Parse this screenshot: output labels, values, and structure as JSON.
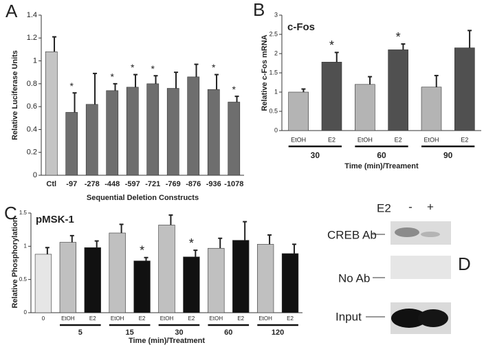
{
  "panel_labels": [
    "A",
    "B",
    "C",
    "D"
  ],
  "chart_data": [
    {
      "type": "bar",
      "ylabel": "Relative Luciferase Units",
      "xlabel": "Sequential Deletion Constructs",
      "categories": [
        "Ctl",
        "-97",
        "-278",
        "-448",
        "-597",
        "-721",
        "-769",
        "-876",
        "-936",
        "-1078"
      ],
      "values": [
        1.08,
        0.55,
        0.62,
        0.74,
        0.77,
        0.8,
        0.76,
        0.86,
        0.75,
        0.64
      ],
      "errors": [
        0.13,
        0.17,
        0.27,
        0.06,
        0.11,
        0.07,
        0.14,
        0.11,
        0.13,
        0.05
      ],
      "markers": [
        null,
        "*",
        null,
        "*",
        "*",
        "*",
        null,
        null,
        "*",
        "*"
      ],
      "colors": [
        "#c4c4c4",
        "#6e6e6e",
        "#6e6e6e",
        "#6e6e6e",
        "#6e6e6e",
        "#6e6e6e",
        "#6e6e6e",
        "#6e6e6e",
        "#6e6e6e",
        "#6e6e6e"
      ],
      "ylim": [
        0,
        1.4
      ],
      "yticks": [
        0,
        0.2,
        0.4,
        0.6,
        0.8,
        1,
        1.2,
        1.4
      ]
    },
    {
      "type": "bar",
      "title": "c-Fos",
      "ylabel": "Relative c-Fos mRNA",
      "xlabel": "Time (min)/Treament",
      "categories": [
        "EtOH",
        "E2",
        "EtOH",
        "E2",
        "EtOH",
        "E2"
      ],
      "group_labels": [
        "30",
        null,
        "60",
        null,
        "90",
        null
      ],
      "values": [
        1.0,
        1.78,
        1.2,
        2.1,
        1.13,
        2.15
      ],
      "errors": [
        0.08,
        0.25,
        0.2,
        0.15,
        0.3,
        0.45
      ],
      "markers": [
        null,
        "*",
        null,
        "*",
        null,
        null
      ],
      "colors": [
        "#b4b4b4",
        "#505050",
        "#b4b4b4",
        "#505050",
        "#b4b4b4",
        "#505050"
      ],
      "ylim": [
        0,
        3
      ],
      "yticks": [
        0,
        0.5,
        1,
        1.5,
        2,
        2.5,
        3
      ]
    },
    {
      "type": "bar",
      "title": "pMSK-1",
      "ylabel": "Relative Phosphorylation",
      "xlabel": "Time (min)/Treatment",
      "categories": [
        "0",
        "EtOH",
        "E2",
        "EtOH",
        "E2",
        "EtOH",
        "E2",
        "EtOH",
        "E2",
        "EtOH",
        "E2"
      ],
      "group_labels": [
        null,
        "5",
        null,
        "15",
        null,
        "30",
        null,
        "60",
        null,
        "120",
        null
      ],
      "values": [
        0.88,
        1.06,
        0.98,
        1.2,
        0.78,
        1.32,
        0.84,
        0.97,
        1.09,
        1.03,
        0.89
      ],
      "errors": [
        0.1,
        0.1,
        0.1,
        0.13,
        0.05,
        0.15,
        0.1,
        0.15,
        0.28,
        0.14,
        0.14
      ],
      "markers": [
        null,
        null,
        null,
        null,
        "*",
        null,
        "*",
        null,
        null,
        null,
        null
      ],
      "colors": [
        "#e6e6e6",
        "#c0c0c0",
        "#111111",
        "#c0c0c0",
        "#111111",
        "#c0c0c0",
        "#111111",
        "#c0c0c0",
        "#111111",
        "#c0c0c0",
        "#111111"
      ],
      "ylim": [
        0,
        1.5
      ],
      "yticks": [
        0,
        0.5,
        1,
        1.5
      ]
    }
  ],
  "blot": {
    "treatment": "E2",
    "lanes": [
      "-",
      "+"
    ],
    "rows": [
      "CREB Ab",
      "No Ab",
      "Input"
    ]
  }
}
